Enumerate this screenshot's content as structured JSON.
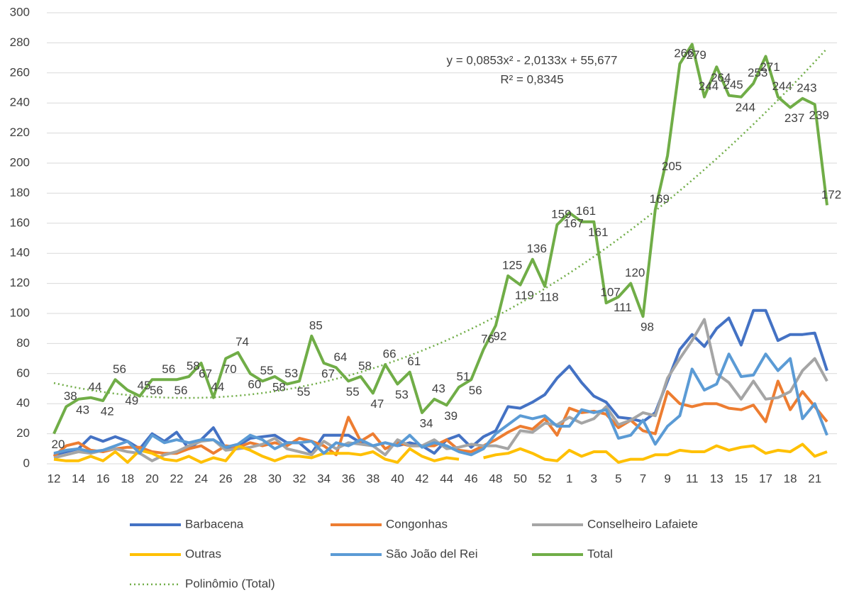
{
  "chart_data": {
    "type": "line",
    "categories": [
      "12",
      null,
      "14",
      null,
      "16",
      null,
      "18",
      null,
      "20",
      null,
      "22",
      null,
      "24",
      null,
      "26",
      null,
      "28",
      null,
      "30",
      null,
      "32",
      null,
      "34",
      null,
      "36",
      null,
      "38",
      null,
      "40",
      null,
      "42",
      null,
      "44",
      null,
      "46",
      null,
      "48",
      null,
      "50",
      null,
      "52",
      null,
      "1",
      null,
      "3",
      null,
      "5",
      null,
      "7",
      null,
      "9",
      null,
      "11",
      null,
      "13",
      null,
      "15",
      null,
      "17",
      null,
      "18",
      null,
      "21",
      null
    ],
    "ylim": [
      0,
      300
    ],
    "yticks": [
      0,
      20,
      40,
      60,
      80,
      100,
      120,
      140,
      160,
      180,
      200,
      220,
      240,
      260,
      280,
      300
    ],
    "grid": true,
    "series": [
      {
        "name": "Barbacena",
        "color": "#4472c4",
        "values": [
          6,
          8,
          10,
          18,
          15,
          18,
          15,
          10,
          20,
          15,
          21,
          10,
          16,
          24,
          10,
          12,
          17,
          18,
          19,
          14,
          14,
          7,
          19,
          19,
          19,
          14,
          12,
          14,
          12,
          14,
          12,
          7,
          16,
          19,
          11,
          18,
          22,
          38,
          37,
          41,
          46,
          57,
          65,
          54,
          45,
          41,
          31,
          30,
          28,
          34,
          55,
          76,
          86,
          78,
          90,
          97,
          79,
          102,
          102,
          82,
          86,
          86,
          87,
          62
        ]
      },
      {
        "name": "Congonhas",
        "color": "#ed7d31",
        "values": [
          5,
          12,
          14,
          9,
          8,
          10,
          11,
          11,
          8,
          7,
          7,
          10,
          12,
          7,
          12,
          11,
          14,
          12,
          14,
          12,
          17,
          15,
          12,
          6,
          31,
          15,
          20,
          10,
          14,
          12,
          12,
          12,
          16,
          9,
          8,
          12,
          16,
          21,
          25,
          23,
          30,
          19,
          37,
          34,
          35,
          33,
          24,
          29,
          22,
          20,
          48,
          40,
          38,
          40,
          40,
          37,
          36,
          39,
          28,
          55,
          36,
          48,
          38,
          28
        ]
      },
      {
        "name": "Conselheiro Lafaiete",
        "color": "#a5a5a5",
        "values": [
          4,
          6,
          8,
          7,
          9,
          10,
          8,
          7,
          2,
          6,
          8,
          12,
          15,
          16,
          9,
          10,
          11,
          13,
          17,
          10,
          8,
          6,
          15,
          10,
          14,
          13,
          12,
          6,
          16,
          12,
          12,
          16,
          10,
          11,
          13,
          12,
          12,
          10,
          22,
          21,
          27,
          26,
          31,
          27,
          30,
          38,
          26,
          29,
          34,
          32,
          57,
          70,
          82,
          96,
          60,
          54,
          43,
          55,
          43,
          44,
          48,
          62,
          70,
          55
        ]
      },
      {
        "name": "Outras",
        "color": "#ffc000",
        "values": [
          3,
          2,
          2,
          5,
          2,
          8,
          1,
          9,
          7,
          3,
          2,
          5,
          1,
          4,
          2,
          12,
          9,
          5,
          2,
          5,
          5,
          4,
          7,
          7,
          7,
          6,
          8,
          3,
          1,
          10,
          5,
          2,
          4,
          3,
          null,
          4,
          6,
          7,
          10,
          7,
          3,
          2,
          9,
          5,
          8,
          8,
          1,
          3,
          3,
          6,
          6,
          9,
          8,
          8,
          12,
          9,
          11,
          12,
          7,
          9,
          8,
          13,
          5,
          8
        ]
      },
      {
        "name": "São João del Rei",
        "color": "#5b9bd5",
        "values": [
          7,
          9,
          10,
          8,
          9,
          12,
          15,
          7,
          19,
          14,
          16,
          14,
          16,
          16,
          11,
          13,
          19,
          16,
          10,
          14,
          14,
          15,
          7,
          14,
          12,
          16,
          12,
          14,
          12,
          19,
          11,
          14,
          12,
          8,
          6,
          10,
          20,
          26,
          32,
          30,
          32,
          25,
          25,
          36,
          34,
          36,
          17,
          19,
          29,
          13,
          25,
          32,
          63,
          49,
          53,
          73,
          58,
          59,
          73,
          62,
          70,
          30,
          40,
          19
        ]
      },
      {
        "name": "Total",
        "color": "#70ad47",
        "labels": true,
        "values": [
          20,
          38,
          43,
          44,
          42,
          56,
          49,
          45,
          56,
          56,
          56,
          58,
          67,
          44,
          70,
          74,
          60,
          55,
          58,
          53,
          55,
          85,
          67,
          64,
          55,
          58,
          47,
          66,
          53,
          61,
          34,
          43,
          39,
          51,
          56,
          76,
          92,
          125,
          119,
          136,
          118,
          159,
          167,
          161,
          161,
          107,
          111,
          120,
          98,
          169,
          205,
          266,
          279,
          244,
          264,
          245,
          244,
          253,
          271,
          244,
          237,
          243,
          239,
          172
        ]
      }
    ],
    "trendline": {
      "name": "Polinômio (Total)",
      "color": "#70ad47",
      "coefficients": [
        55.677,
        -2.0133,
        0.0853
      ],
      "equation": "y = 0,0853x² - 2,0133x + 55,677",
      "r2": "R² = 0,8345"
    }
  }
}
